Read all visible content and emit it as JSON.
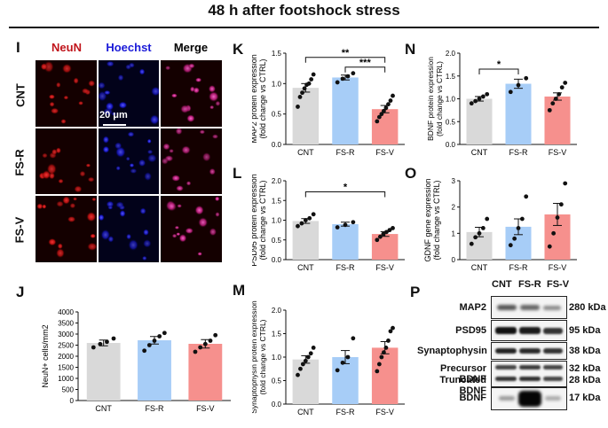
{
  "figure_title": "48 h after footshock stress",
  "panel_I": {
    "label": "I",
    "channels": [
      "NeuN",
      "Hoechst",
      "Merge"
    ],
    "channel_colors": [
      "#c0141b",
      "#1a1ad8",
      "#000000"
    ],
    "rows": [
      "CNT",
      "FS-R",
      "FS-V"
    ],
    "scale_bar": "20 μm"
  },
  "group_colors": {
    "CNT": "#d9d9d9",
    "FS-R": "#a7cdf7",
    "FS-V": "#f6908d"
  },
  "panel_J": {
    "label": "J"
  },
  "panel_K": {
    "label": "K"
  },
  "panel_L": {
    "label": "L"
  },
  "panel_M": {
    "label": "M"
  },
  "panel_N": {
    "label": "N"
  },
  "panel_O": {
    "label": "O"
  },
  "panel_P": {
    "label": "P",
    "columns": [
      "CNT",
      "FS-R",
      "FS-V"
    ],
    "proteins": [
      "MAP2",
      "PSD95",
      "Synaptophysin",
      "Precursor BDNF",
      "Truncated BDNF",
      "BDNF"
    ],
    "kda": [
      "280 kDa",
      "95 kDa",
      "38 kDa",
      "32 kDa",
      "28 kDa",
      "17 kDa"
    ]
  },
  "chart_data": [
    {
      "id": "K",
      "type": "bar",
      "categories": [
        "CNT",
        "FS-R",
        "FS-V"
      ],
      "values": [
        0.93,
        1.1,
        0.58
      ],
      "errors": [
        0.07,
        0.04,
        0.06
      ],
      "points": [
        [
          0.62,
          0.78,
          0.85,
          0.92,
          0.98,
          1.0,
          1.07,
          1.15
        ],
        [
          1.02,
          1.08,
          1.12,
          1.17
        ],
        [
          0.38,
          0.45,
          0.5,
          0.55,
          0.6,
          0.66,
          0.72,
          0.8
        ]
      ],
      "ylabel": "MAP2 protein expression (fold change vs CTRL)",
      "ylim": [
        0,
        1.5
      ],
      "yticks": [
        0,
        0.5,
        1.0,
        1.5
      ],
      "ytick_labels": [
        "0.0",
        "0.5",
        "1.0",
        "1.5"
      ],
      "significance": [
        {
          "from": 0,
          "to": 2,
          "label": "**",
          "y": 1.43
        },
        {
          "from": 1,
          "to": 2,
          "label": "***",
          "y": 1.27
        }
      ]
    },
    {
      "id": "L",
      "type": "bar",
      "categories": [
        "CNT",
        "FS-R",
        "FS-V"
      ],
      "values": [
        0.98,
        0.9,
        0.65
      ],
      "errors": [
        0.06,
        0.05,
        0.06
      ],
      "points": [
        [
          0.85,
          0.92,
          1.0,
          1.05,
          1.15
        ],
        [
          0.82,
          0.88,
          0.95
        ],
        [
          0.5,
          0.58,
          0.65,
          0.7,
          0.75,
          0.8
        ]
      ],
      "ylabel": "PSD95 protein expression (fold change vs CTRL)",
      "ylim": [
        0,
        2.0
      ],
      "yticks": [
        0,
        0.5,
        1.0,
        1.5,
        2.0
      ],
      "ytick_labels": [
        "0.0",
        "0.5",
        "1.0",
        "1.5",
        "2.0"
      ],
      "significance": [
        {
          "from": 0,
          "to": 2,
          "label": "*",
          "y": 1.72
        }
      ]
    },
    {
      "id": "M",
      "type": "bar",
      "categories": [
        "CNT",
        "FS-R",
        "FS-V"
      ],
      "values": [
        0.95,
        1.0,
        1.2
      ],
      "errors": [
        0.08,
        0.14,
        0.13
      ],
      "points": [
        [
          0.62,
          0.75,
          0.85,
          0.92,
          1.0,
          1.08,
          1.2
        ],
        [
          0.72,
          0.88,
          1.0,
          1.4
        ],
        [
          0.7,
          0.85,
          1.0,
          1.1,
          1.2,
          1.35,
          1.55,
          1.62
        ]
      ],
      "ylabel": "Synaptophysin protein expression (fold change vs CTRL)",
      "ylim": [
        0,
        2.0
      ],
      "yticks": [
        0,
        0.5,
        1.0,
        1.5,
        2.0
      ],
      "ytick_labels": [
        "0.0",
        "0.5",
        "1.0",
        "1.5",
        "2.0"
      ],
      "significance": []
    },
    {
      "id": "N",
      "type": "bar",
      "categories": [
        "CNT",
        "FS-R",
        "FS-V"
      ],
      "values": [
        1.0,
        1.33,
        1.05
      ],
      "errors": [
        0.05,
        0.1,
        0.08
      ],
      "points": [
        [
          0.9,
          0.95,
          1.0,
          1.05,
          1.1
        ],
        [
          1.15,
          1.3,
          1.45
        ],
        [
          0.75,
          0.9,
          1.0,
          1.1,
          1.25,
          1.35
        ]
      ],
      "ylabel": "BDNF/Total BDNF protein expression (fold change vs CTRL)",
      "ylim": [
        0,
        2.0
      ],
      "yticks": [
        0,
        0.5,
        1.0,
        1.5,
        2.0
      ],
      "ytick_labels": [
        "0.0",
        "0.5",
        "1.0",
        "1.5",
        "2.0"
      ],
      "significance": [
        {
          "from": 0,
          "to": 1,
          "label": "*",
          "y": 1.65
        }
      ]
    },
    {
      "id": "O",
      "type": "bar",
      "categories": [
        "CNT",
        "FS-R",
        "FS-V"
      ],
      "values": [
        1.05,
        1.25,
        1.72
      ],
      "errors": [
        0.18,
        0.3,
        0.42
      ],
      "points": [
        [
          0.6,
          0.85,
          1.0,
          1.2,
          1.55
        ],
        [
          0.55,
          0.8,
          1.2,
          1.55,
          2.4
        ],
        [
          0.5,
          1.0,
          1.6,
          2.1,
          2.9
        ]
      ],
      "ylabel": "GDNF gene expression (fold change vs CTRL)",
      "ylim": [
        0,
        3
      ],
      "yticks": [
        0,
        1,
        2,
        3
      ],
      "ytick_labels": [
        "0",
        "1",
        "2",
        "3"
      ],
      "significance": []
    },
    {
      "id": "J",
      "type": "bar",
      "categories": [
        "CNT",
        "FS-R",
        "FS-V"
      ],
      "values": [
        2600,
        2720,
        2560
      ],
      "errors": [
        130,
        170,
        190
      ],
      "points": [
        [
          2400,
          2550,
          2650,
          2800
        ],
        [
          2250,
          2500,
          2700,
          2900,
          3050
        ],
        [
          2200,
          2400,
          2550,
          2700,
          2950
        ]
      ],
      "ylabel": "NeuN+ cells/mm2",
      "ylim": [
        0,
        4000
      ],
      "yticks": [
        0,
        500,
        1000,
        1500,
        2000,
        2500,
        3000,
        3500,
        4000
      ],
      "ytick_labels": [
        "0",
        "500",
        "1000",
        "1500",
        "2000",
        "2500",
        "3000",
        "3500",
        "4000"
      ],
      "significance": []
    }
  ]
}
